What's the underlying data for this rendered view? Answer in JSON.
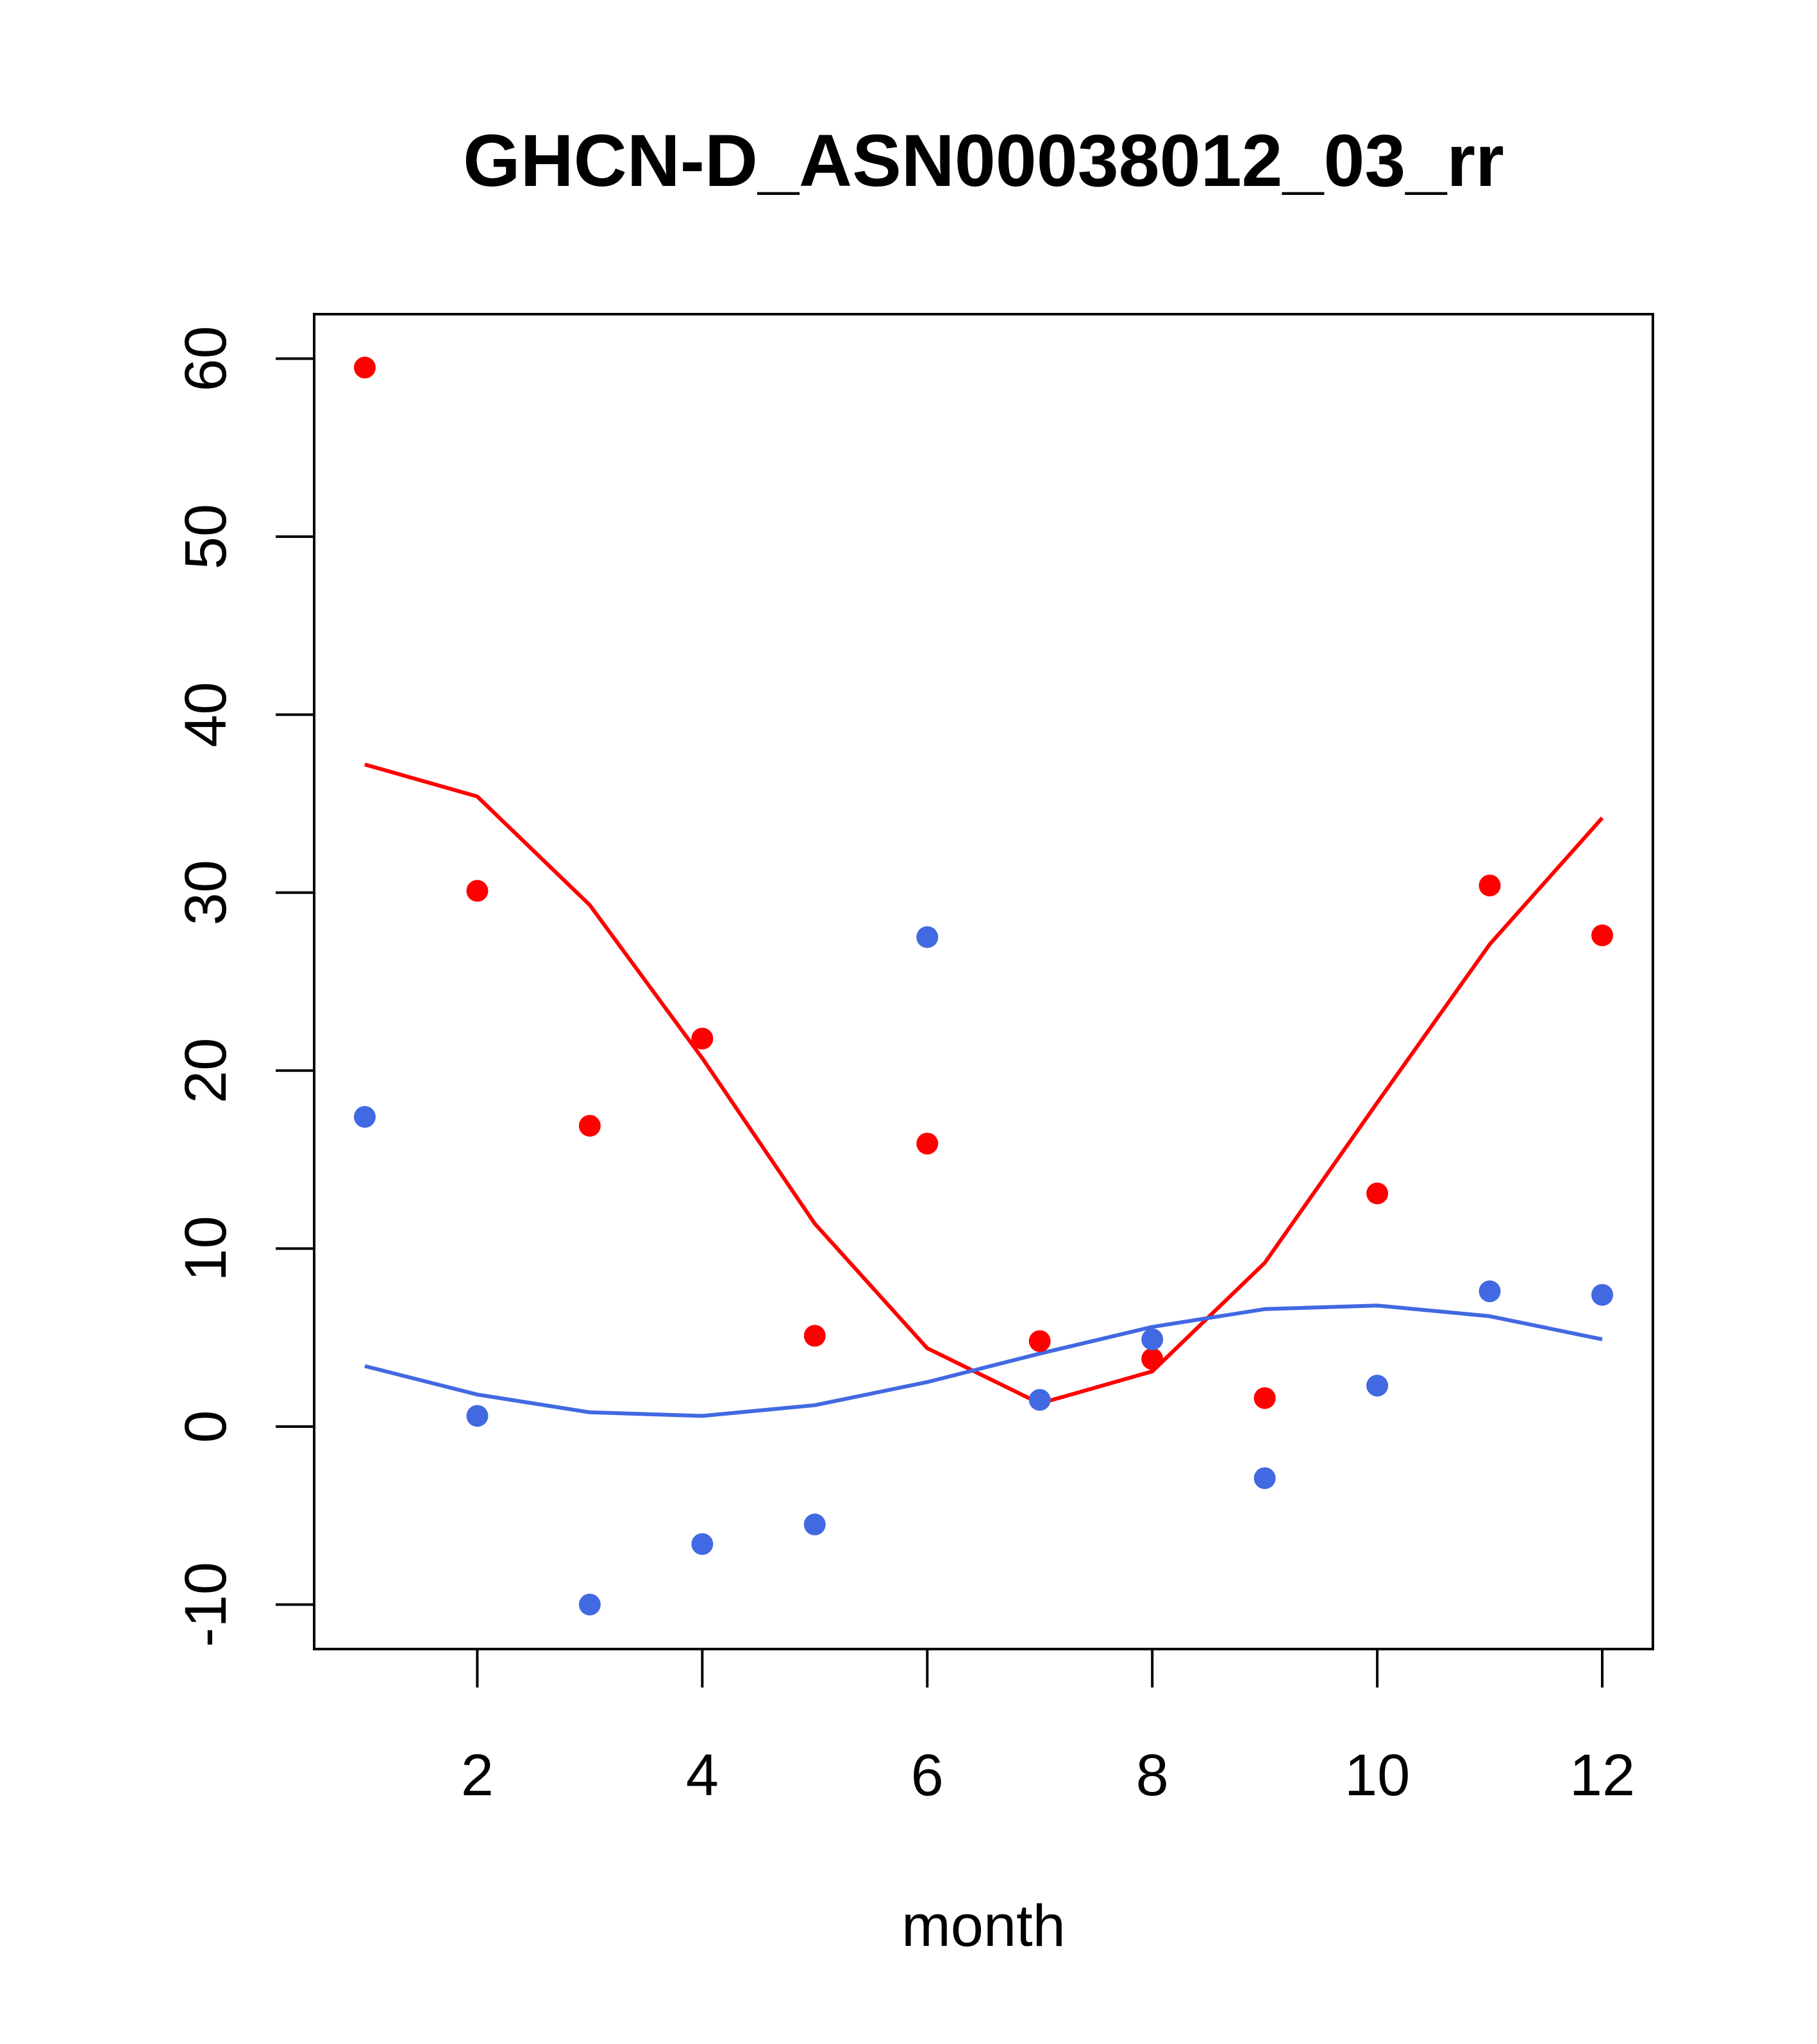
{
  "chart_data": {
    "type": "scatter",
    "title": "GHCN-D_ASN00038012_03_rr",
    "xlabel": "month",
    "ylabel": "",
    "xlim": [
      0.55,
      12.45
    ],
    "ylim": [
      -12.5,
      62.5
    ],
    "x_ticks": [
      2,
      4,
      6,
      8,
      10,
      12
    ],
    "y_ticks": [
      -10,
      0,
      10,
      20,
      30,
      40,
      50,
      60
    ],
    "grid": false,
    "legend": "none",
    "series": [
      {
        "kind": "points",
        "color": "#ff0000",
        "x": [
          1,
          2,
          3,
          4,
          5,
          6,
          7,
          8,
          9,
          10,
          11,
          12
        ],
        "y": [
          59.5,
          30.1,
          16.9,
          21.8,
          5.1,
          15.9,
          4.8,
          3.8,
          1.6,
          13.1,
          30.4,
          27.6
        ]
      },
      {
        "kind": "points",
        "color": "#4169e1",
        "x": [
          1,
          2,
          3,
          4,
          5,
          6,
          7,
          8,
          9,
          10,
          11,
          12
        ],
        "y": [
          17.4,
          0.6,
          -10.0,
          -6.6,
          -5.5,
          27.5,
          1.5,
          4.9,
          -2.9,
          2.3,
          7.6,
          7.4
        ]
      },
      {
        "kind": "line",
        "color": "#ff0000",
        "x": [
          1,
          2,
          3,
          4,
          5,
          6,
          7,
          8,
          9,
          10,
          11,
          12
        ],
        "y": [
          37.2,
          35.4,
          29.3,
          20.7,
          11.4,
          4.4,
          1.3,
          3.1,
          9.2,
          18.2,
          27.1,
          34.2
        ]
      },
      {
        "kind": "line",
        "color": "#4169e1",
        "x": [
          1,
          2,
          3,
          4,
          5,
          6,
          7,
          8,
          9,
          10,
          11,
          12
        ],
        "y": [
          3.4,
          1.8,
          0.8,
          0.6,
          1.2,
          2.5,
          4.1,
          5.6,
          6.6,
          6.8,
          6.2,
          4.9
        ]
      }
    ]
  }
}
